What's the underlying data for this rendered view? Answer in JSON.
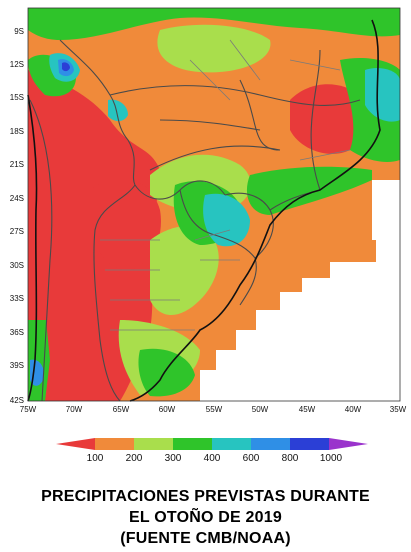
{
  "map": {
    "lat_labels": [
      "9S",
      "12S",
      "15S",
      "18S",
      "21S",
      "24S",
      "27S",
      "30S",
      "33S",
      "36S",
      "39S",
      "42S"
    ],
    "lon_labels": [
      "75W",
      "70W",
      "65W",
      "60W",
      "55W",
      "50W",
      "45W",
      "40W",
      "35W"
    ],
    "palette": {
      "lt100": "#e83a3a",
      "b100_200": "#f08a3a",
      "b200_300": "#a9de4c",
      "b300_400": "#2fc42a",
      "b400_600": "#27c4c0",
      "b600_800": "#2f8fe6",
      "b800_1000": "#2b3fd6",
      "gt1000": "#9a33cc"
    }
  },
  "legend": {
    "labels": [
      "100",
      "200",
      "300",
      "400",
      "600",
      "800",
      "1000"
    ],
    "colors": [
      "#e83a3a",
      "#f08a3a",
      "#a9de4c",
      "#2fc42a",
      "#27c4c0",
      "#2f8fe6",
      "#2b3fd6",
      "#9a33cc"
    ]
  },
  "caption": {
    "line1": "PRECIPITACIONES PREVISTAS DURANTE",
    "line2": "EL OTOÑO DE 2019",
    "line3": "(FUENTE CMB/NOAA)"
  }
}
